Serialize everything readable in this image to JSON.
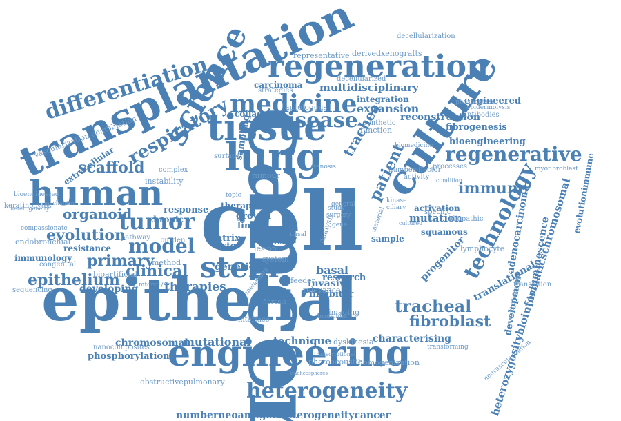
{
  "word_color": "#4a80b4",
  "background": "#ffffff",
  "words": [
    "cell",
    "cancer",
    "epithelial",
    "engineering",
    "transplantation",
    "lung",
    "tissue",
    "human",
    "culture",
    "regeneration",
    "stem",
    "science",
    "heterogeneity",
    "technology",
    "differentiation",
    "medicine",
    "regenerative",
    "tumor",
    "respiratory",
    "model",
    "disease",
    "tracheal",
    "fibroblast",
    "clinical",
    "scaffold",
    "primary",
    "evolution",
    "epithelium",
    "organoid",
    "immune",
    "patient",
    "trachea",
    "numberneoantigenheterogeneitycancer",
    "heterozygositybioinformaticschromosomal",
    "multidisciplinary",
    "expansion",
    "reconstruction",
    "fibrogenesis",
    "engineered",
    "bioengineering",
    "therapies",
    "developing",
    "invasive",
    "inhibitor",
    "mutation",
    "mutational",
    "chromosomal",
    "technique",
    "characterising",
    "phosphorylation",
    "basal",
    "research",
    "genetic",
    "translational",
    "adenocarcinoma",
    "bioluminescence",
    "progenitor",
    "development",
    "integration",
    "collagen",
    "autologous",
    "carcinoma",
    "strategies",
    "growth",
    "therapy",
    "response",
    "chronic",
    "resistance",
    "immunology",
    "congenital",
    "extracellular",
    "instability",
    "complex",
    "vascularization combination",
    "representative",
    "derivedxenografts",
    "decellularization",
    "decellularized",
    "evolutionimmune",
    "squamous",
    "activation",
    "lymphocyte",
    "sampling",
    "photoacoustic",
    "homogenization",
    "obstructivepulmonary",
    "nanocomposites",
    "keratinocytes",
    "endobronchial",
    "compassionate",
    "heterogeneity",
    "bioengineered",
    "antibodies",
    "epidermolysis",
    "phosphatase",
    "myofibroblast",
    "function",
    "synthetic",
    "biomedicine",
    "effector",
    "activity",
    "specific",
    "idiopathic",
    "translation",
    "epithelialization",
    "neovascularization",
    "transforming",
    "dyskinesia",
    "relevance",
    "imaging",
    "bronchial",
    "feeder",
    "matrix",
    "factor",
    "graft",
    "lesion",
    "sample",
    "system",
    "line",
    "surface",
    "tumour",
    "sequencing",
    "method",
    "pathway",
    "burden",
    "mtorc1/4c",
    "bioartificial",
    "interface",
    "transcriptional",
    "fibrosis",
    "number",
    "kinase",
    "processes",
    "ciliary",
    "material",
    "stenosis",
    "study",
    "surgery",
    "topic",
    "gene",
    "general",
    "analysis",
    "nasal",
    "melanoma",
    "mechanism",
    "condition",
    "cultured",
    "tracheospheres"
  ]
}
